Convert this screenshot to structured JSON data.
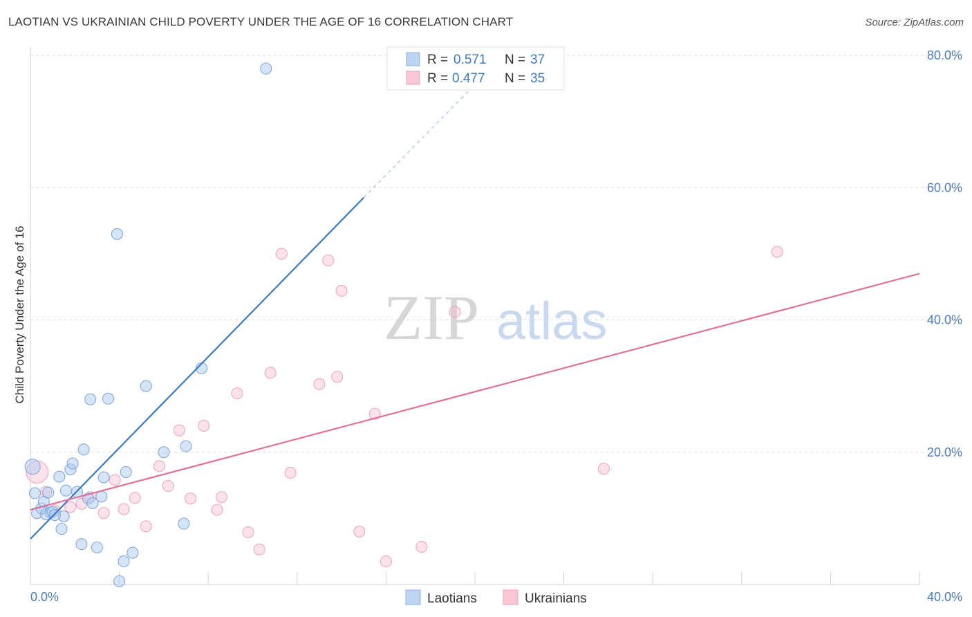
{
  "title": "LAOTIAN VS UKRAINIAN CHILD POVERTY UNDER THE AGE OF 16 CORRELATION CHART",
  "source": "Source: ZipAtlas.com",
  "watermark": {
    "zip": "ZIP",
    "atlas": "atlas"
  },
  "chart_data": {
    "type": "scatter",
    "ylabel": "Child Poverty Under the Age of 16",
    "xlim": [
      0,
      40
    ],
    "ylim": [
      0,
      80
    ],
    "x_tick_labels": {
      "min": "0.0%",
      "max": "40.0%"
    },
    "y_ticks": [
      20,
      40,
      60,
      80
    ],
    "y_tick_labels": [
      "20.0%",
      "40.0%",
      "60.0%",
      "80.0%"
    ],
    "grid": true,
    "colors": {
      "laotians": "#3a78c9",
      "ukrainians": "#e07098"
    },
    "legend": [
      {
        "r_label": "R =",
        "r_value": "0.571",
        "n_label": "N =",
        "n_value": "37"
      },
      {
        "r_label": "R =",
        "r_value": "0.477",
        "n_label": "N =",
        "n_value": "35"
      }
    ],
    "series": [
      {
        "name": "Laotians",
        "trend": {
          "x0": 0,
          "y0": 6.9,
          "x1": 15.0,
          "y1": 58.5,
          "dash_x1": 21.0,
          "dash_y1": 79.0
        },
        "points": [
          [
            0.1,
            17.8
          ],
          [
            0.2,
            13.8
          ],
          [
            0.3,
            10.8
          ],
          [
            0.5,
            11.5
          ],
          [
            0.6,
            12.5
          ],
          [
            0.7,
            10.6
          ],
          [
            0.8,
            13.9
          ],
          [
            0.9,
            10.9
          ],
          [
            1.0,
            11.0
          ],
          [
            1.3,
            16.3
          ],
          [
            1.4,
            8.4
          ],
          [
            1.5,
            10.3
          ],
          [
            1.6,
            14.2
          ],
          [
            1.8,
            17.4
          ],
          [
            1.9,
            18.3
          ],
          [
            2.1,
            14.0
          ],
          [
            2.3,
            6.1
          ],
          [
            2.4,
            20.4
          ],
          [
            2.6,
            13.0
          ],
          [
            2.7,
            28.0
          ],
          [
            2.8,
            12.3
          ],
          [
            3.0,
            5.6
          ],
          [
            3.2,
            13.3
          ],
          [
            3.3,
            16.2
          ],
          [
            3.5,
            28.1
          ],
          [
            3.9,
            53.0
          ],
          [
            4.2,
            3.5
          ],
          [
            4.3,
            17.0
          ],
          [
            4.6,
            4.8
          ],
          [
            5.2,
            30.0
          ],
          [
            6.0,
            20.0
          ],
          [
            6.9,
            9.2
          ],
          [
            7.0,
            20.9
          ],
          [
            7.7,
            32.7
          ],
          [
            10.6,
            78.0
          ],
          [
            4.0,
            0.5
          ],
          [
            1.1,
            10.5
          ]
        ]
      },
      {
        "name": "Ukrainians",
        "trend": {
          "x0": 0,
          "y0": 11.3,
          "x1": 40.0,
          "y1": 47.0
        },
        "points": [
          [
            0.3,
            17.0
          ],
          [
            0.7,
            14.0
          ],
          [
            1.1,
            11.2
          ],
          [
            1.8,
            11.7
          ],
          [
            2.3,
            12.2
          ],
          [
            2.7,
            13.2
          ],
          [
            3.3,
            10.8
          ],
          [
            3.8,
            15.8
          ],
          [
            4.2,
            11.4
          ],
          [
            4.7,
            13.1
          ],
          [
            5.2,
            8.8
          ],
          [
            5.8,
            17.9
          ],
          [
            6.2,
            14.9
          ],
          [
            6.7,
            23.3
          ],
          [
            7.2,
            13.0
          ],
          [
            7.8,
            24.0
          ],
          [
            8.4,
            11.3
          ],
          [
            8.6,
            13.2
          ],
          [
            9.3,
            28.9
          ],
          [
            9.8,
            7.9
          ],
          [
            10.3,
            5.3
          ],
          [
            10.8,
            32.0
          ],
          [
            11.3,
            50.0
          ],
          [
            11.7,
            16.9
          ],
          [
            13.0,
            30.3
          ],
          [
            13.4,
            49.0
          ],
          [
            13.8,
            31.4
          ],
          [
            14.0,
            44.4
          ],
          [
            14.8,
            8.0
          ],
          [
            15.5,
            25.8
          ],
          [
            16.0,
            3.5
          ],
          [
            17.6,
            5.7
          ],
          [
            19.1,
            41.2
          ],
          [
            25.8,
            17.5
          ],
          [
            33.6,
            50.3
          ]
        ]
      }
    ]
  }
}
